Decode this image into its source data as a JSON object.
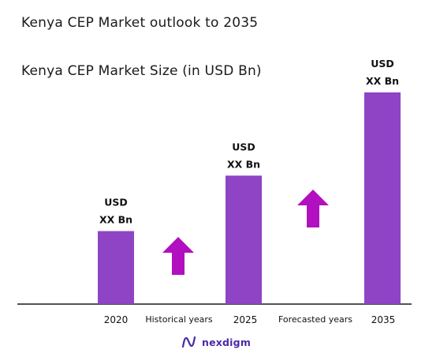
{
  "title": "Kenya CEP Market outlook to 2035",
  "subtitle": "Kenya CEP Market Size (in USD Bn)",
  "colors": {
    "bar": "#8e44c4",
    "arrow": "#b10fbf",
    "axis": "#1a1a1a",
    "brand": "#4b2aa8"
  },
  "chart_data": {
    "type": "bar",
    "categories": [
      "2020",
      "2025",
      "2035"
    ],
    "values": [
      1,
      1.76,
      2.9
    ],
    "data_labels": [
      [
        "USD",
        "XX Bn"
      ],
      [
        "USD",
        "XX Bn"
      ],
      [
        "USD",
        "XX Bn"
      ]
    ],
    "period_labels": [
      "Historical years",
      "Forecasted years"
    ],
    "ylim": [
      0,
      2.9
    ],
    "grid": false,
    "legend": "none"
  },
  "brand": {
    "name": "nexdigm",
    "icon": "nexdigm-logo-icon"
  }
}
